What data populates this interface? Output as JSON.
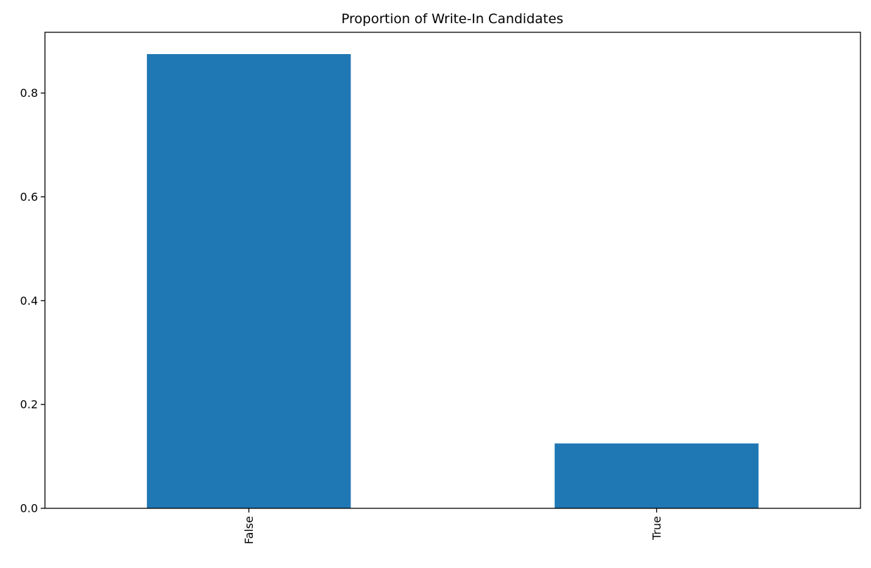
{
  "chart_data": {
    "type": "bar",
    "title": "Proportion of Write-In Candidates",
    "xlabel": "",
    "ylabel": "",
    "categories": [
      "False",
      "True"
    ],
    "values": [
      0.875,
      0.125
    ],
    "ylim": [
      0,
      0.917
    ],
    "yticks": [
      0.0,
      0.2,
      0.4,
      0.6,
      0.8
    ],
    "ytick_labels": [
      "0.0",
      "0.2",
      "0.4",
      "0.6",
      "0.8"
    ],
    "bar_color": "#1f77b4",
    "grid": false,
    "legend": "none"
  }
}
